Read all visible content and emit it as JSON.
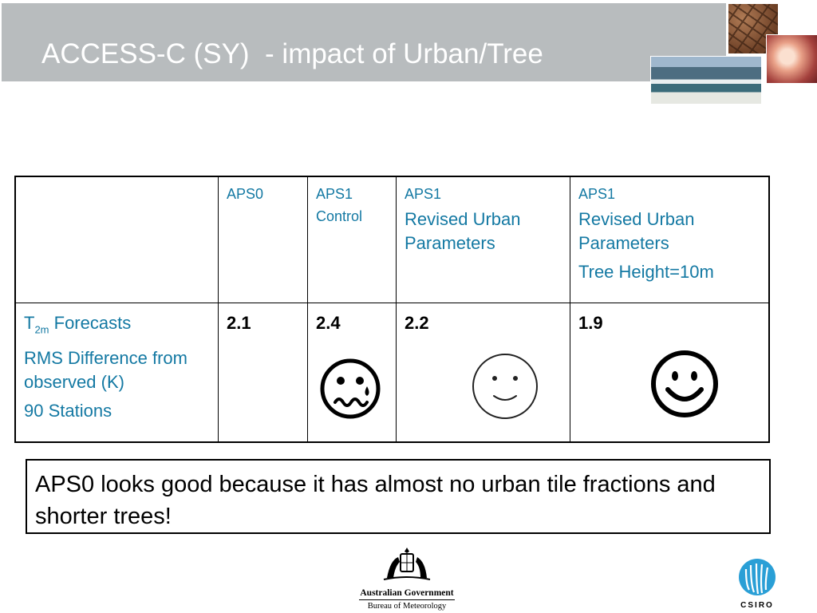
{
  "slide": {
    "title": "ACCESS-C (SY)  - impact of Urban/Tree"
  },
  "table": {
    "headers": [
      {
        "line1": "APS0"
      },
      {
        "line1": "APS1",
        "line2": "Control"
      },
      {
        "line1": "APS1",
        "line2": "Revised Urban Parameters"
      },
      {
        "line1": "APS1",
        "line2": "Revised Urban Parameters",
        "line3": "Tree Height=10m"
      }
    ],
    "row_label": {
      "t_main": "T",
      "t_sub": "2m",
      "t_rest": " Forecasts",
      "line2": "RMS Difference from observed (K)",
      "line3": "90 Stations"
    },
    "values": [
      "2.1",
      "2.4",
      "2.2",
      "1.9"
    ],
    "faces": [
      "none",
      "sad-face-icon",
      "neutral-smile-icon",
      "happy-face-icon"
    ]
  },
  "note": {
    "text": "APS0 looks good because it has almost no urban tile fractions and shorter trees!"
  },
  "logos": {
    "gov_name": "Australian Government",
    "gov_sub": "Bureau of Meteorology",
    "csiro": "CSIRO"
  },
  "colors": {
    "title_bar": "#b8bcbe",
    "header_text": "#1479a3",
    "csiro_blue": "#2a9fd6"
  }
}
